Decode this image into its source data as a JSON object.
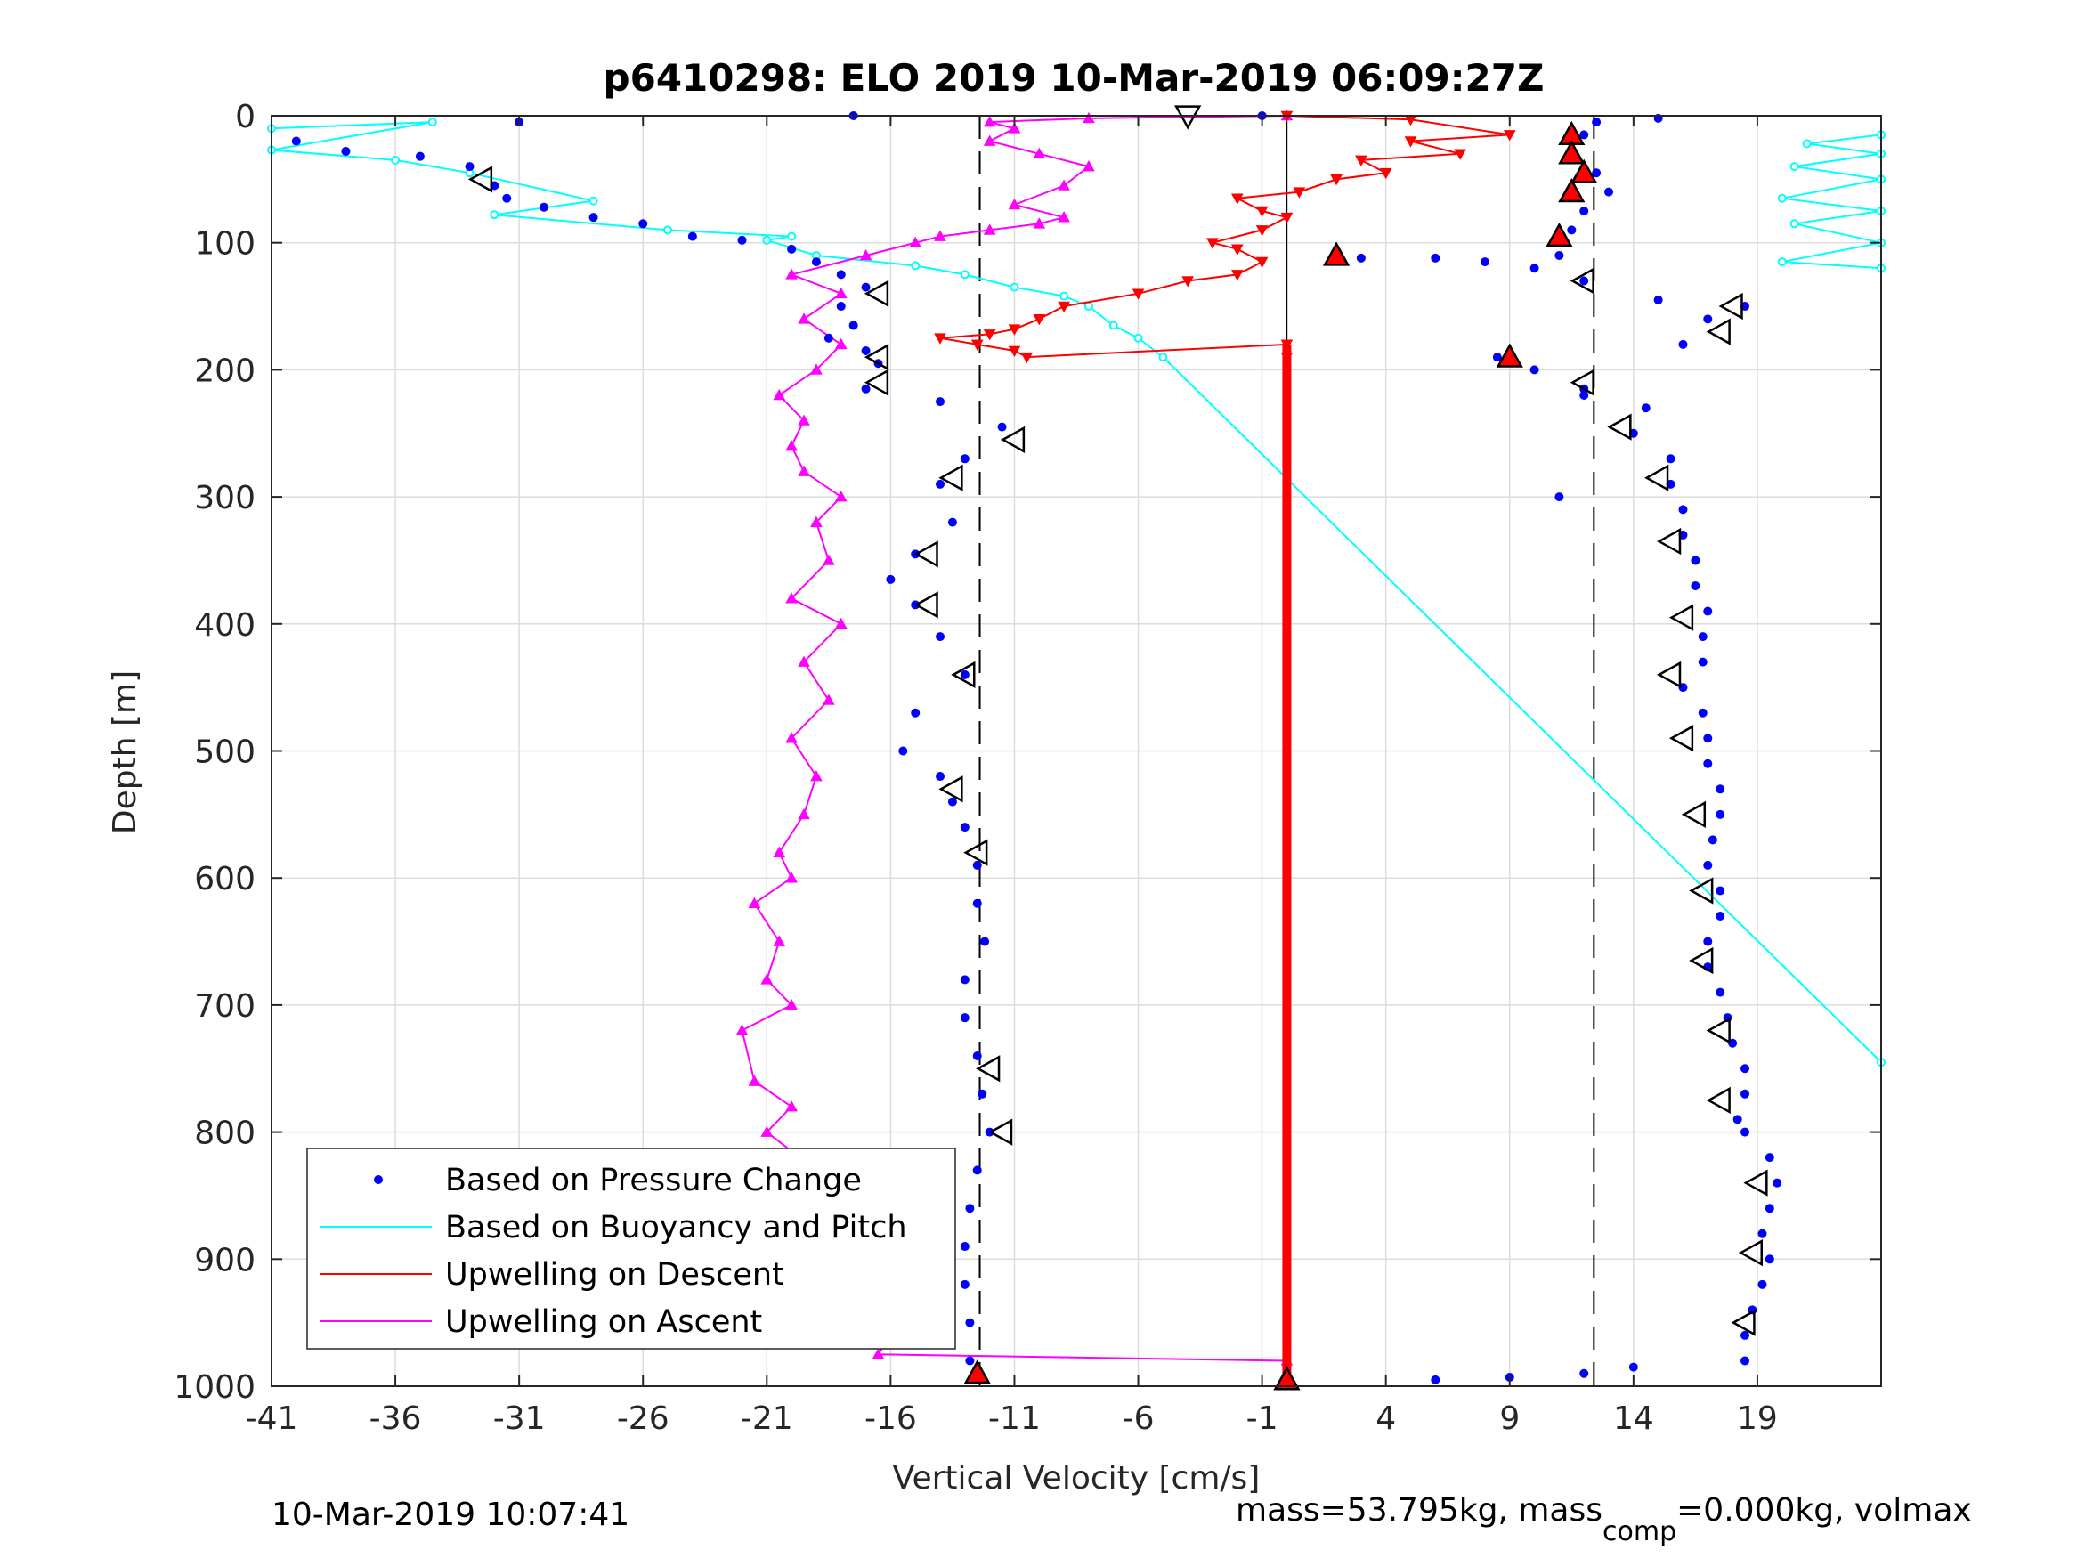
{
  "chart_data": {
    "type": "scatter",
    "title": "p6410298: ELO 2019 10-Mar-2019 06:09:27Z",
    "xlabel": "Vertical Velocity [cm/s]",
    "ylabel": "Depth [m]",
    "xlim": [
      -41,
      24
    ],
    "ylim": [
      1000,
      0
    ],
    "y_reversed": true,
    "grid": true,
    "legend_position": "bottom-left",
    "xticks": [
      -41,
      -36,
      -31,
      -26,
      -21,
      -16,
      -11,
      -6,
      -1,
      4,
      9,
      14,
      19
    ],
    "yticks": [
      0,
      100,
      200,
      300,
      400,
      500,
      600,
      700,
      800,
      900,
      1000
    ],
    "reference_lines": {
      "dashed_x": [
        -12.4,
        12.4
      ],
      "solid_x": [
        0
      ]
    },
    "series": [
      {
        "name": "Based on Pressure Change",
        "style": "dots",
        "color": "#0000ff",
        "descent": [
          [
            -40,
            20
          ],
          [
            -38,
            28
          ],
          [
            -35,
            32
          ],
          [
            -33,
            40
          ],
          [
            -32,
            55
          ],
          [
            -31.5,
            65
          ],
          [
            -30,
            72
          ],
          [
            -28,
            80
          ],
          [
            -26,
            85
          ],
          [
            -24,
            95
          ],
          [
            -22,
            98
          ],
          [
            -20,
            105
          ],
          [
            -19,
            115
          ],
          [
            -18,
            125
          ],
          [
            -17,
            135
          ],
          [
            -18,
            150
          ],
          [
            -17.5,
            165
          ],
          [
            -18.5,
            175
          ],
          [
            -17,
            185
          ],
          [
            -16.5,
            195
          ],
          [
            -17,
            215
          ],
          [
            -14,
            225
          ],
          [
            -11.5,
            245
          ],
          [
            -13,
            270
          ],
          [
            -14,
            290
          ],
          [
            -13.5,
            320
          ],
          [
            -15,
            345
          ],
          [
            -16,
            365
          ],
          [
            -15,
            385
          ],
          [
            -14,
            410
          ],
          [
            -13,
            440
          ],
          [
            -15,
            470
          ],
          [
            -15.5,
            500
          ],
          [
            -14,
            520
          ],
          [
            -13.5,
            540
          ],
          [
            -13,
            560
          ],
          [
            -12.5,
            590
          ],
          [
            -12.5,
            620
          ],
          [
            -12.2,
            650
          ],
          [
            -13,
            680
          ],
          [
            -13,
            710
          ],
          [
            -12.5,
            740
          ],
          [
            -12.3,
            770
          ],
          [
            -12,
            800
          ],
          [
            -12.5,
            830
          ],
          [
            -12.8,
            860
          ],
          [
            -13,
            890
          ],
          [
            -13,
            920
          ],
          [
            -12.8,
            950
          ],
          [
            -12.8,
            980
          ],
          [
            -12.5,
            990
          ]
        ],
        "ascent": [
          [
            6,
            995
          ],
          [
            9,
            993
          ],
          [
            12,
            990
          ],
          [
            14,
            985
          ],
          [
            11,
            300
          ],
          [
            14.5,
            230
          ],
          [
            14,
            250
          ],
          [
            15.5,
            270
          ],
          [
            15.5,
            290
          ],
          [
            16,
            310
          ],
          [
            16,
            330
          ],
          [
            16.5,
            350
          ],
          [
            16.5,
            370
          ],
          [
            17,
            390
          ],
          [
            16.8,
            410
          ],
          [
            16.8,
            430
          ],
          [
            16,
            450
          ],
          [
            16.8,
            470
          ],
          [
            17,
            490
          ],
          [
            17,
            510
          ],
          [
            17.5,
            530
          ],
          [
            17.5,
            550
          ],
          [
            17.2,
            570
          ],
          [
            17,
            590
          ],
          [
            17.5,
            610
          ],
          [
            17.5,
            630
          ],
          [
            17,
            650
          ],
          [
            17,
            670
          ],
          [
            17.5,
            690
          ],
          [
            17.8,
            710
          ],
          [
            18,
            730
          ],
          [
            18.5,
            750
          ],
          [
            18.5,
            770
          ],
          [
            18.2,
            790
          ],
          [
            18.5,
            800
          ],
          [
            19.5,
            820
          ],
          [
            19.8,
            840
          ],
          [
            19.5,
            860
          ],
          [
            19.2,
            880
          ],
          [
            19.5,
            900
          ],
          [
            19.2,
            920
          ],
          [
            18.8,
            940
          ],
          [
            18.5,
            960
          ],
          [
            18.5,
            980
          ],
          [
            12,
            220
          ],
          [
            10,
            200
          ],
          [
            8.5,
            190
          ],
          [
            12,
            215
          ],
          [
            16,
            180
          ],
          [
            17,
            160
          ],
          [
            18.5,
            150
          ],
          [
            15,
            145
          ],
          [
            12,
            130
          ],
          [
            10,
            120
          ],
          [
            8,
            115
          ],
          [
            6,
            112
          ],
          [
            3,
            112
          ],
          [
            11,
            110
          ],
          [
            11.5,
            90
          ],
          [
            12,
            75
          ],
          [
            13,
            60
          ],
          [
            12.5,
            45
          ],
          [
            11.5,
            30
          ],
          [
            12,
            15
          ],
          [
            12.5,
            5
          ],
          [
            15,
            2
          ],
          [
            -1,
            0
          ],
          [
            -17.5,
            0
          ],
          [
            -31,
            5
          ]
        ]
      },
      {
        "name": "Based on Buoyancy and Pitch",
        "style": "line-circles",
        "color": "#00ffff",
        "points": [
          [
            -41,
            10
          ],
          [
            -34.5,
            5
          ],
          [
            -41,
            27
          ],
          [
            -36,
            35
          ],
          [
            -33,
            45
          ],
          [
            -28,
            67
          ],
          [
            -32,
            78
          ],
          [
            -25,
            90
          ],
          [
            -20,
            95
          ],
          [
            -21,
            98
          ],
          [
            -19,
            110
          ],
          [
            -15,
            118
          ],
          [
            -13,
            125
          ],
          [
            -11,
            135
          ],
          [
            -9,
            142
          ],
          [
            -8,
            150
          ],
          [
            -7,
            165
          ],
          [
            -6,
            175
          ],
          [
            -5,
            190
          ],
          [
            24,
            745
          ],
          [
            24,
            120
          ],
          [
            20,
            115
          ],
          [
            24,
            100
          ],
          [
            20.5,
            85
          ],
          [
            24,
            75
          ],
          [
            20,
            65
          ],
          [
            24,
            50
          ],
          [
            20.5,
            40
          ],
          [
            24,
            30
          ],
          [
            21,
            22
          ],
          [
            24,
            15
          ]
        ]
      },
      {
        "name": "Upwelling on Descent",
        "style": "line-down-triangles",
        "color": "#ff0000",
        "points": [
          [
            0,
            0
          ],
          [
            5,
            3
          ],
          [
            9,
            15
          ],
          [
            5,
            20
          ],
          [
            7,
            30
          ],
          [
            3,
            35
          ],
          [
            4,
            45
          ],
          [
            2,
            50
          ],
          [
            0.5,
            60
          ],
          [
            -2,
            65
          ],
          [
            -1,
            75
          ],
          [
            0,
            80
          ],
          [
            -1,
            90
          ],
          [
            -3,
            100
          ],
          [
            -2,
            105
          ],
          [
            -1,
            115
          ],
          [
            -2,
            125
          ],
          [
            -4,
            130
          ],
          [
            -6,
            140
          ],
          [
            -9,
            150
          ],
          [
            -10,
            160
          ],
          [
            -11,
            168
          ],
          [
            -12,
            172
          ],
          [
            -14,
            175
          ],
          [
            -12.5,
            180
          ],
          [
            -11,
            185
          ],
          [
            -10.5,
            190
          ],
          [
            0,
            180
          ],
          [
            0,
            190
          ]
        ]
      },
      {
        "name": "Upwelling on Ascent",
        "style": "line-up-triangles",
        "color": "#ff00ff",
        "points": [
          [
            0,
            980
          ],
          [
            -16.5,
            975
          ],
          [
            -16,
            960
          ],
          [
            -17,
            950
          ],
          [
            -18,
            930
          ],
          [
            -19,
            900
          ],
          [
            -18,
            880
          ],
          [
            -20,
            860
          ],
          [
            -19,
            830
          ],
          [
            -21,
            800
          ],
          [
            -20,
            780
          ],
          [
            -21.5,
            760
          ],
          [
            -22,
            720
          ],
          [
            -20,
            700
          ],
          [
            -21,
            680
          ],
          [
            -20.5,
            650
          ],
          [
            -21.5,
            620
          ],
          [
            -20,
            600
          ],
          [
            -20.5,
            580
          ],
          [
            -19.5,
            550
          ],
          [
            -19,
            520
          ],
          [
            -20,
            490
          ],
          [
            -18.5,
            460
          ],
          [
            -19.5,
            430
          ],
          [
            -18,
            400
          ],
          [
            -20,
            380
          ],
          [
            -18.5,
            350
          ],
          [
            -19,
            320
          ],
          [
            -18,
            300
          ],
          [
            -19.5,
            280
          ],
          [
            -20,
            260
          ],
          [
            -19.5,
            240
          ],
          [
            -20.5,
            220
          ],
          [
            -19,
            200
          ],
          [
            -18,
            180
          ],
          [
            -19.5,
            160
          ],
          [
            -18,
            140
          ],
          [
            -20,
            125
          ],
          [
            -17,
            110
          ],
          [
            -15,
            100
          ],
          [
            -14,
            95
          ],
          [
            -12,
            90
          ],
          [
            -10,
            85
          ],
          [
            -9,
            80
          ],
          [
            -11,
            70
          ],
          [
            -9,
            55
          ],
          [
            -8,
            40
          ],
          [
            -10,
            30
          ],
          [
            -12,
            20
          ],
          [
            -11,
            10
          ],
          [
            -12,
            5
          ],
          [
            -8,
            2
          ],
          [
            0,
            0
          ]
        ]
      }
    ],
    "markers": {
      "open_left_triangles": [
        [
          -32.5,
          50
        ],
        [
          -16.5,
          140
        ],
        [
          -16.5,
          190
        ],
        [
          -16.5,
          210
        ],
        [
          -11,
          255
        ],
        [
          -13.5,
          285
        ],
        [
          -14.5,
          345
        ],
        [
          -14.5,
          385
        ],
        [
          -13,
          440
        ],
        [
          -13.5,
          530
        ],
        [
          -12.5,
          580
        ],
        [
          -12,
          750
        ],
        [
          -11.5,
          800
        ],
        [
          12,
          130
        ],
        [
          12,
          210
        ],
        [
          13.5,
          245
        ],
        [
          15,
          285
        ],
        [
          15.5,
          335
        ],
        [
          16,
          395
        ],
        [
          15.5,
          440
        ],
        [
          16,
          490
        ],
        [
          16.5,
          550
        ],
        [
          16.8,
          610
        ],
        [
          16.8,
          665
        ],
        [
          17.5,
          720
        ],
        [
          17.5,
          775
        ],
        [
          19,
          840
        ],
        [
          18.8,
          895
        ],
        [
          18.5,
          950
        ],
        [
          17.5,
          170
        ],
        [
          18,
          150
        ]
      ],
      "open_down_triangles": [
        [
          -4,
          0
        ]
      ],
      "filled_red_up_triangles": [
        [
          2,
          110
        ],
        [
          9,
          190
        ],
        [
          11,
          95
        ],
        [
          11.5,
          15
        ],
        [
          11.5,
          30
        ],
        [
          12,
          45
        ],
        [
          11.5,
          60
        ],
        [
          -12.5,
          990
        ],
        [
          0,
          995
        ]
      ]
    }
  },
  "footer": {
    "timestamp": "10-Mar-2019 10:07:41",
    "mass_text": "mass=53.795kg, mass",
    "mass_sub": "comp",
    "mass_text2": "=0.000kg, volmax"
  }
}
